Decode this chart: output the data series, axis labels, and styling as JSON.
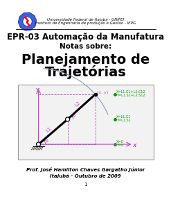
{
  "title_line1": "Universidade Federal de Itajubá - UNIFEI",
  "title_line2": "Instituto de Engenharia de produção e Gestão - IEPG",
  "course": "EPR-03 Automação da Manufatura",
  "notes": "Notas sobre:",
  "main_title_1": "Planejamento de",
  "main_title_2": "Trajetórias",
  "author": "Prof. José Hamilton Chaves Gargatho Júnior",
  "location_date": "Itajubá - Outubro de 2009",
  "page": "1",
  "bg_color": "#ffffff",
  "magenta": "#cc44cc",
  "green": "#009900",
  "black": "#000000",
  "gray_bg": "#f0f0f0"
}
